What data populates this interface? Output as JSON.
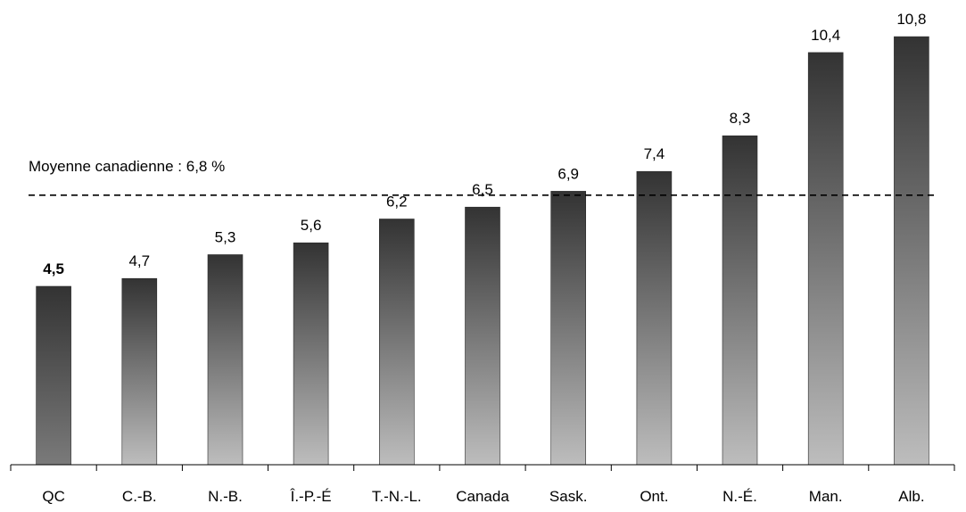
{
  "chart_data": {
    "type": "bar",
    "categories": [
      "QC",
      "C.-B.",
      "N.-B.",
      "Î.-P.-É",
      "T.-N.-L.",
      "Canada",
      "Sask.",
      "Ont.",
      "N.-É.",
      "Man.",
      "Alb."
    ],
    "values": [
      4.5,
      4.7,
      5.3,
      5.6,
      6.2,
      6.5,
      6.9,
      7.4,
      8.3,
      10.4,
      10.8
    ],
    "value_labels": [
      "4,5",
      "4,7",
      "5,3",
      "5,6",
      "6,2",
      "6,5",
      "6,9",
      "7,4",
      "8,3",
      "10,4",
      "10,8"
    ],
    "highlighted_category": "QC",
    "reference_line": {
      "value": 6.8,
      "label": "Moyenne canadienne : 6,8 %",
      "style": "dashed"
    },
    "ylim": [
      0,
      11.5
    ],
    "grid": false,
    "legend": "none",
    "colors": {
      "bar_top": "#333333",
      "bar_bottom": "#bdbdbd",
      "qc_bottom": "#7a7a7a",
      "axis": "#000000",
      "reference_line": "#000000"
    }
  }
}
